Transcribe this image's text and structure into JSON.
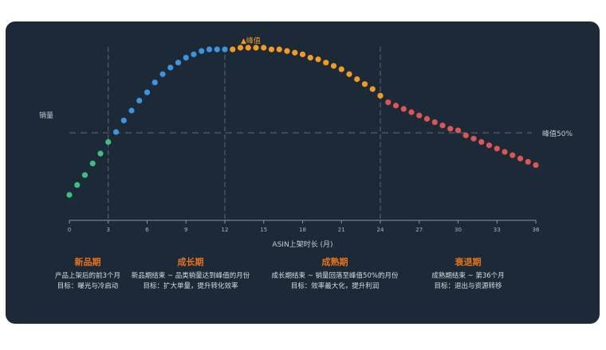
{
  "chart_data": {
    "type": "scatter",
    "xlabel": "ASIN上架时长 (月)",
    "ylabel": "销量",
    "xlim": [
      0,
      36
    ],
    "ylim": [
      0,
      1
    ],
    "x_ticks": [
      "0",
      "3",
      "6",
      "9",
      "12",
      "15",
      "18",
      "21",
      "24",
      "27",
      "30",
      "33",
      "36"
    ],
    "vlines": [
      3,
      12,
      24
    ],
    "hline": {
      "y": 0.5,
      "label": "峰值50%"
    },
    "peak_label": "▲峰值",
    "series": [
      {
        "color": "#3fbf7f",
        "x": [
          0,
          0.6,
          1.2,
          1.8,
          2.4,
          3.0
        ],
        "y": [
          0.12,
          0.18,
          0.24,
          0.31,
          0.37,
          0.44
        ]
      },
      {
        "color": "#3d95e0",
        "x": [
          3.6,
          4.2,
          4.8,
          5.4,
          6.0,
          6.6,
          7.2,
          7.8,
          8.4,
          9.0,
          9.6,
          10.2,
          10.8,
          11.4,
          12.0
        ],
        "y": [
          0.5,
          0.57,
          0.63,
          0.69,
          0.74,
          0.8,
          0.85,
          0.89,
          0.92,
          0.95,
          0.97,
          0.99,
          1.0,
          1.0,
          1.0
        ]
      },
      {
        "color": "#f39a22",
        "x": [
          12.6,
          13.2,
          13.8,
          14.4,
          15.0,
          15.6,
          16.2,
          16.8,
          17.4,
          18.0,
          18.6,
          19.2,
          19.8,
          20.4,
          21.0,
          21.6,
          22.2,
          22.8,
          23.4,
          24.0
        ],
        "y": [
          1.0,
          1.01,
          1.01,
          1.01,
          1.01,
          1.0,
          1.0,
          0.99,
          0.98,
          0.97,
          0.95,
          0.94,
          0.92,
          0.9,
          0.88,
          0.85,
          0.82,
          0.79,
          0.76,
          0.72
        ]
      },
      {
        "color": "#e05454",
        "x": [
          24.6,
          25.2,
          25.8,
          26.4,
          27.0,
          27.6,
          28.2,
          28.8,
          29.4,
          30.0,
          30.6,
          31.2,
          31.8,
          32.4,
          33.0,
          33.6,
          34.2,
          34.8,
          35.4,
          36.0
        ],
        "y": [
          0.68,
          0.66,
          0.64,
          0.62,
          0.6,
          0.58,
          0.56,
          0.54,
          0.52,
          0.51,
          0.48,
          0.46,
          0.44,
          0.42,
          0.4,
          0.38,
          0.36,
          0.34,
          0.32,
          0.3
        ]
      }
    ]
  },
  "phases": [
    {
      "key": "new",
      "name": "新品期",
      "line1": "产品上架后的前3个月",
      "line2": "目标：曝光与冷启动"
    },
    {
      "key": "growth",
      "name": "成长期",
      "line1": "新品期结束 ~ 品类销量达到峰值的月份",
      "line2": "目标：扩大单量，提升转化效率"
    },
    {
      "key": "mature",
      "name": "成熟期",
      "line1": "成长期结束 ~ 销量回落至峰值50%的月份",
      "line2": "目标：效率最大化，提升利润"
    },
    {
      "key": "decline",
      "name": "衰退期",
      "line1": "成熟期结束 ~ 第36个月",
      "line2": "目标：退出与资源转移"
    }
  ]
}
